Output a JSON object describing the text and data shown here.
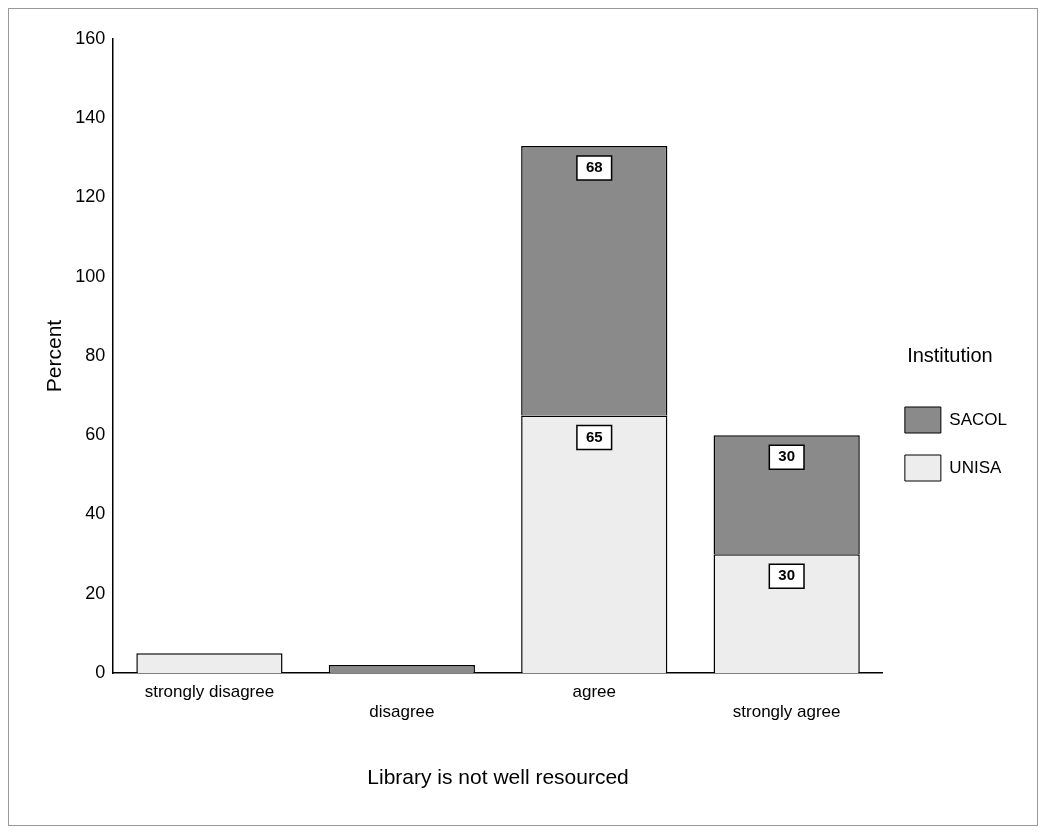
{
  "chart_data": {
    "type": "bar",
    "stacked": true,
    "xlabel": "Library is not well resourced",
    "ylabel": "Percent",
    "legend_title": "Institution",
    "legend": "right",
    "categories": [
      "strongly disagree",
      "disagree",
      "agree",
      "strongly agree"
    ],
    "series": [
      {
        "name": "UNISA",
        "color": "#ededed",
        "values": [
          5,
          null,
          65,
          30
        ],
        "value_labels": [
          null,
          null,
          "65",
          "30"
        ]
      },
      {
        "name": "SACOL",
        "color": "#8a8a8a",
        "values": [
          null,
          2,
          68,
          30
        ],
        "value_labels": [
          null,
          null,
          "68",
          "30"
        ]
      }
    ],
    "ylim": [
      0,
      160
    ],
    "yticks": [
      0,
      20,
      40,
      60,
      80,
      100,
      120,
      140,
      160
    ],
    "grid": false
  }
}
